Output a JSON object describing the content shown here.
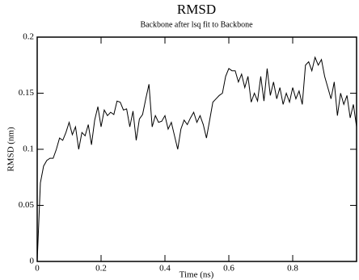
{
  "chart_data": {
    "type": "line",
    "title": "RMSD",
    "subtitle": "Backbone after lsq fit to Backbone",
    "x_label": "Time (ns)",
    "y_label": "RMSD (nm)",
    "color": "#000000",
    "xlim": [
      0,
      1
    ],
    "ylim": [
      0,
      0.2
    ],
    "xticks": [
      0,
      0.2,
      0.4,
      0.6,
      0.8
    ],
    "yticks": [
      0,
      0.05,
      0.1,
      0.15,
      0.2
    ],
    "x": [
      0,
      0.01,
      0.02,
      0.03,
      0.04,
      0.05,
      0.06,
      0.07,
      0.08,
      0.09,
      0.1,
      0.11,
      0.12,
      0.13,
      0.14,
      0.15,
      0.16,
      0.17,
      0.18,
      0.19,
      0.2,
      0.21,
      0.22,
      0.23,
      0.24,
      0.25,
      0.26,
      0.27,
      0.28,
      0.29,
      0.3,
      0.31,
      0.32,
      0.33,
      0.34,
      0.35,
      0.36,
      0.37,
      0.38,
      0.39,
      0.4,
      0.41,
      0.42,
      0.43,
      0.44,
      0.45,
      0.46,
      0.47,
      0.48,
      0.49,
      0.5,
      0.51,
      0.52,
      0.53,
      0.54,
      0.55,
      0.56,
      0.57,
      0.58,
      0.59,
      0.6,
      0.61,
      0.62,
      0.63,
      0.64,
      0.65,
      0.66,
      0.67,
      0.68,
      0.69,
      0.7,
      0.71,
      0.72,
      0.73,
      0.74,
      0.75,
      0.76,
      0.77,
      0.78,
      0.79,
      0.8,
      0.81,
      0.82,
      0.83,
      0.84,
      0.85,
      0.86,
      0.87,
      0.88,
      0.89,
      0.9,
      0.91,
      0.92,
      0.93,
      0.94,
      0.95,
      0.96,
      0.97,
      0.98,
      0.99,
      1
    ],
    "values": [
      0,
      0.07,
      0.085,
      0.09,
      0.092,
      0.092,
      0.1,
      0.11,
      0.108,
      0.115,
      0.124,
      0.113,
      0.12,
      0.1,
      0.115,
      0.112,
      0.122,
      0.104,
      0.126,
      0.138,
      0.12,
      0.135,
      0.13,
      0.133,
      0.131,
      0.143,
      0.142,
      0.135,
      0.136,
      0.12,
      0.134,
      0.108,
      0.127,
      0.131,
      0.145,
      0.158,
      0.12,
      0.13,
      0.124,
      0.125,
      0.13,
      0.118,
      0.124,
      0.112,
      0.1,
      0.118,
      0.126,
      0.122,
      0.128,
      0.133,
      0.124,
      0.13,
      0.122,
      0.11,
      0.126,
      0.142,
      0.145,
      0.148,
      0.15,
      0.165,
      0.172,
      0.17,
      0.17,
      0.16,
      0.167,
      0.155,
      0.165,
      0.142,
      0.15,
      0.143,
      0.165,
      0.143,
      0.172,
      0.148,
      0.16,
      0.145,
      0.155,
      0.14,
      0.15,
      0.142,
      0.155,
      0.145,
      0.152,
      0.14,
      0.175,
      0.178,
      0.17,
      0.182,
      0.175,
      0.18,
      0.165,
      0.155,
      0.145,
      0.16,
      0.13,
      0.15,
      0.14,
      0.148,
      0.128,
      0.14,
      0.12
    ]
  }
}
